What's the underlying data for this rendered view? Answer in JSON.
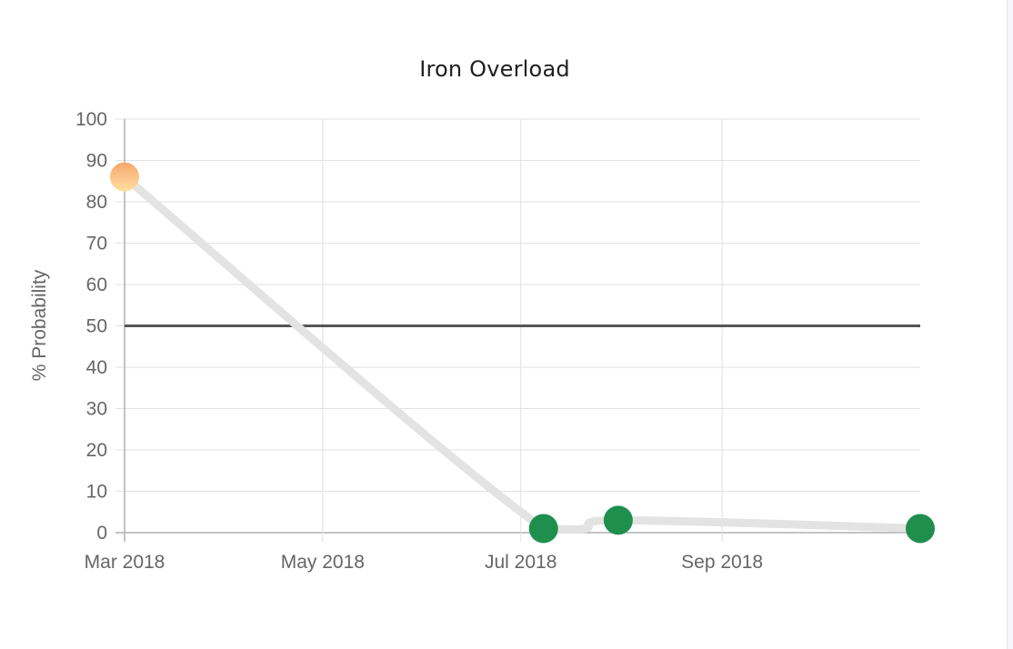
{
  "chart_data": {
    "type": "line",
    "title": "Iron Overload",
    "xlabel": "",
    "ylabel": "% Probability",
    "x_type": "date",
    "xlim": [
      "2018-03-01",
      "2018-11-01"
    ],
    "ylim": [
      0,
      100
    ],
    "x_ticks": [
      {
        "date": "2018-03-01",
        "label": "Mar 2018"
      },
      {
        "date": "2018-05-01",
        "label": "May 2018"
      },
      {
        "date": "2018-07-01",
        "label": "Jul 2018"
      },
      {
        "date": "2018-09-01",
        "label": "Sep 2018"
      }
    ],
    "y_ticks": [
      0,
      10,
      20,
      30,
      40,
      50,
      60,
      70,
      80,
      90,
      100
    ],
    "grid": true,
    "threshold": {
      "value": 50,
      "color": "#555555"
    },
    "series": [
      {
        "line_color": "#e3e3e3",
        "points": [
          {
            "x": "2018-03-01",
            "y": 86,
            "color": "#fbc27e"
          },
          {
            "x": "2018-07-08",
            "y": 1,
            "color": "#1f8f4e"
          },
          {
            "x": "2018-07-31",
            "y": 3,
            "color": "#1f8f4e"
          },
          {
            "x": "2018-11-01",
            "y": 1,
            "color": "#1f8f4e"
          }
        ]
      }
    ]
  }
}
